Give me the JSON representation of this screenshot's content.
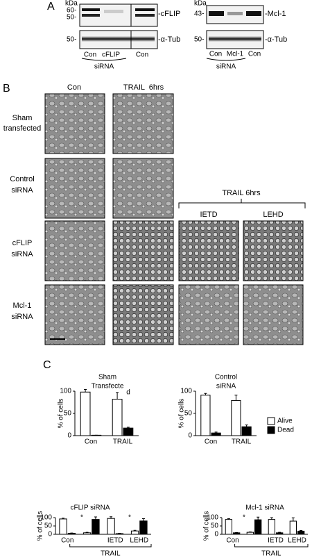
{
  "panel_labels": [
    "A",
    "B",
    "C"
  ],
  "blot_left": {
    "unit": "kDa",
    "markers": [
      "60-",
      "50-",
      "50-"
    ],
    "bands": [
      "-cFLIP",
      "-α-Tub"
    ],
    "lanes": [
      "Con",
      "cFLIP",
      "Con"
    ],
    "group": "siRNA"
  },
  "blot_right": {
    "unit": "kDa",
    "markers": [
      "43-",
      "50-"
    ],
    "bands": [
      "-Mcl-1",
      "-α-Tub"
    ],
    "lanes": [
      "Con",
      "Mcl-1",
      "Con"
    ],
    "group": "siRNA"
  },
  "micrographs": {
    "columns": [
      "Con",
      "TRAIL  6hrs"
    ],
    "rows": [
      [
        "Sham",
        "transfected"
      ],
      [
        "Control",
        "siRNA"
      ],
      [
        "cFLIP",
        "siRNA"
      ],
      [
        "Mcl-1",
        "siRNA"
      ]
    ],
    "treatment": "TRAIL 6hrs",
    "inhibitors": [
      "IETD",
      "LEHD"
    ]
  },
  "chart_data": [
    {
      "type": "bar",
      "title": [
        "Sham",
        "Transfecte"
      ],
      "annotations": [
        "d"
      ],
      "ylabel": "% of cells",
      "categories": [
        "Con",
        "TRAIL"
      ],
      "ylim": [
        0,
        100
      ],
      "yticks": [
        0,
        50,
        100
      ],
      "series": [
        {
          "name": "Alive",
          "color": "#ffffff",
          "values": [
            98,
            82
          ],
          "errors": [
            6,
            15
          ]
        },
        {
          "name": "Dead",
          "color": "#000000",
          "values": [
            1,
            17
          ],
          "errors": [
            0,
            2
          ]
        }
      ]
    },
    {
      "type": "bar",
      "title": [
        "Control",
        "siRNA"
      ],
      "ylabel": "% of cells",
      "categories": [
        "Con",
        "TRAIL"
      ],
      "ylim": [
        0,
        100
      ],
      "yticks": [
        0,
        50,
        100
      ],
      "legend": "right",
      "series": [
        {
          "name": "Alive",
          "color": "#ffffff",
          "values": [
            91,
            79
          ],
          "errors": [
            4,
            12
          ]
        },
        {
          "name": "Dead",
          "color": "#000000",
          "values": [
            6,
            20
          ],
          "errors": [
            2,
            4
          ]
        }
      ]
    },
    {
      "type": "bar",
      "title": [
        "cFLIP siRNA"
      ],
      "annotations": [
        "*",
        "*"
      ],
      "ylabel": "% of cells",
      "categories": [
        "Con",
        null,
        "IETD",
        "LEHD"
      ],
      "group_label": "TRAIL",
      "ylim": [
        0,
        100
      ],
      "yticks": [
        0,
        50,
        100
      ],
      "series": [
        {
          "name": "Alive",
          "color": "#ffffff",
          "values": [
            92,
            9,
            95,
            20
          ],
          "errors": [
            5,
            3,
            10,
            4
          ]
        },
        {
          "name": "Dead",
          "color": "#000000",
          "values": [
            6,
            89,
            4,
            80
          ],
          "errors": [
            2,
            15,
            2,
            14
          ]
        }
      ]
    },
    {
      "type": "bar",
      "title": [
        "Mcl-1 siRNA"
      ],
      "annotations": [
        "*"
      ],
      "ylabel": "% of cells",
      "categories": [
        "Con",
        null,
        "IETD",
        "LEHD"
      ],
      "group_label": "TRAIL",
      "ylim": [
        0,
        100
      ],
      "yticks": [
        0,
        50,
        100
      ],
      "series": [
        {
          "name": "Alive",
          "color": "#ffffff",
          "values": [
            89,
            12,
            89,
            79
          ],
          "errors": [
            5,
            2,
            11,
            20
          ]
        },
        {
          "name": "Dead",
          "color": "#000000",
          "values": [
            9,
            87,
            9,
            19
          ],
          "errors": [
            2,
            16,
            3,
            4
          ]
        }
      ]
    }
  ]
}
